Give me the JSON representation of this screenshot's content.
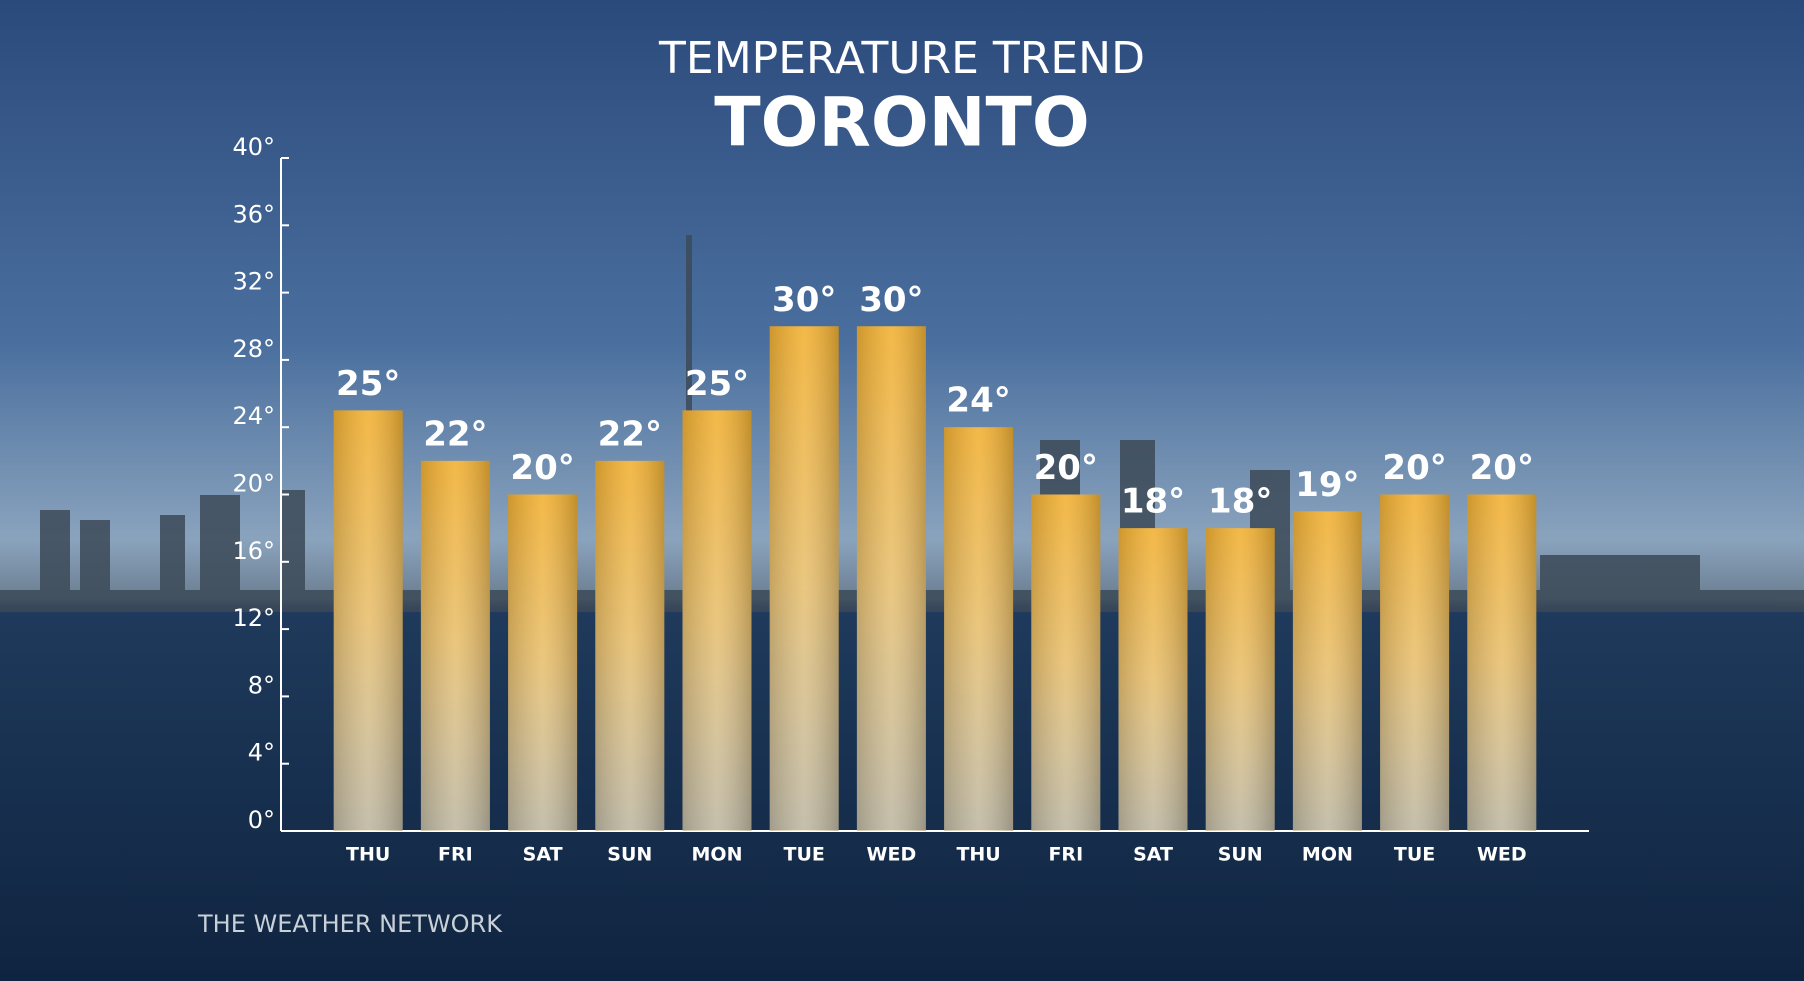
{
  "chart_data": {
    "type": "bar",
    "title": "TEMPERATURE TREND",
    "subtitle": "TORONTO",
    "source": "THE WEATHER NETWORK",
    "categories": [
      "THU",
      "FRI",
      "SAT",
      "SUN",
      "MON",
      "TUE",
      "WED",
      "THU",
      "FRI",
      "SAT",
      "SUN",
      "MON",
      "TUE",
      "WED"
    ],
    "values": [
      25,
      22,
      20,
      22,
      25,
      30,
      30,
      24,
      20,
      18,
      18,
      19,
      20,
      20
    ],
    "value_labels": [
      "25°",
      "22°",
      "20°",
      "22°",
      "25°",
      "30°",
      "30°",
      "24°",
      "20°",
      "18°",
      "18°",
      "19°",
      "20°",
      "20°"
    ],
    "color": "#f2b134",
    "ylim": [
      0,
      40
    ],
    "yticks": [
      {
        "value": 0,
        "label": "0°"
      },
      {
        "value": 4,
        "label": "4°"
      },
      {
        "value": 8,
        "label": "8°"
      },
      {
        "value": 12,
        "label": "12°"
      },
      {
        "value": 16,
        "label": "16°"
      },
      {
        "value": 20,
        "label": "20°"
      },
      {
        "value": 24,
        "label": "24°"
      },
      {
        "value": 28,
        "label": "28°"
      },
      {
        "value": 32,
        "label": "32°"
      },
      {
        "value": 36,
        "label": "36°"
      },
      {
        "value": 40,
        "label": "40°"
      }
    ]
  }
}
